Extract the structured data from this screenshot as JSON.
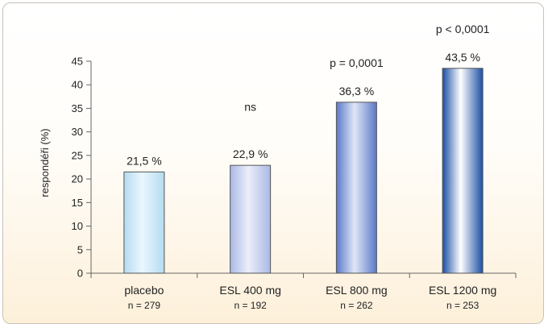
{
  "chart_data": {
    "type": "bar",
    "ylabel": "respondéři (%)",
    "ylim": [
      0,
      45
    ],
    "yticks": [
      0,
      5,
      10,
      15,
      20,
      25,
      30,
      35,
      40,
      45
    ],
    "grid": false,
    "categories": [
      {
        "label": "placebo",
        "n": "n = 279"
      },
      {
        "label": "ESL 400 mg",
        "n": "n = 192"
      },
      {
        "label": "ESL 800 mg",
        "n": "n = 262"
      },
      {
        "label": "ESL 1200 mg",
        "n": "n = 253"
      }
    ],
    "values": [
      21.5,
      22.9,
      36.3,
      43.5
    ],
    "value_labels": [
      "21,5 %",
      "22,9 %",
      "36,3 %",
      "43,5 %"
    ],
    "significance": [
      "",
      "ns",
      "p = 0,0001",
      "p < 0,0001"
    ],
    "colors": {
      "bar_light": [
        "#eaf7ff",
        "#eceff9",
        "#dfe6f7",
        "#ffffff"
      ],
      "bar_dark": [
        "#b4dcf0",
        "#a9b8e6",
        "#5b78c8",
        "#1a4fa3"
      ],
      "bar_outline": "#555555",
      "axis": "#666666"
    }
  }
}
